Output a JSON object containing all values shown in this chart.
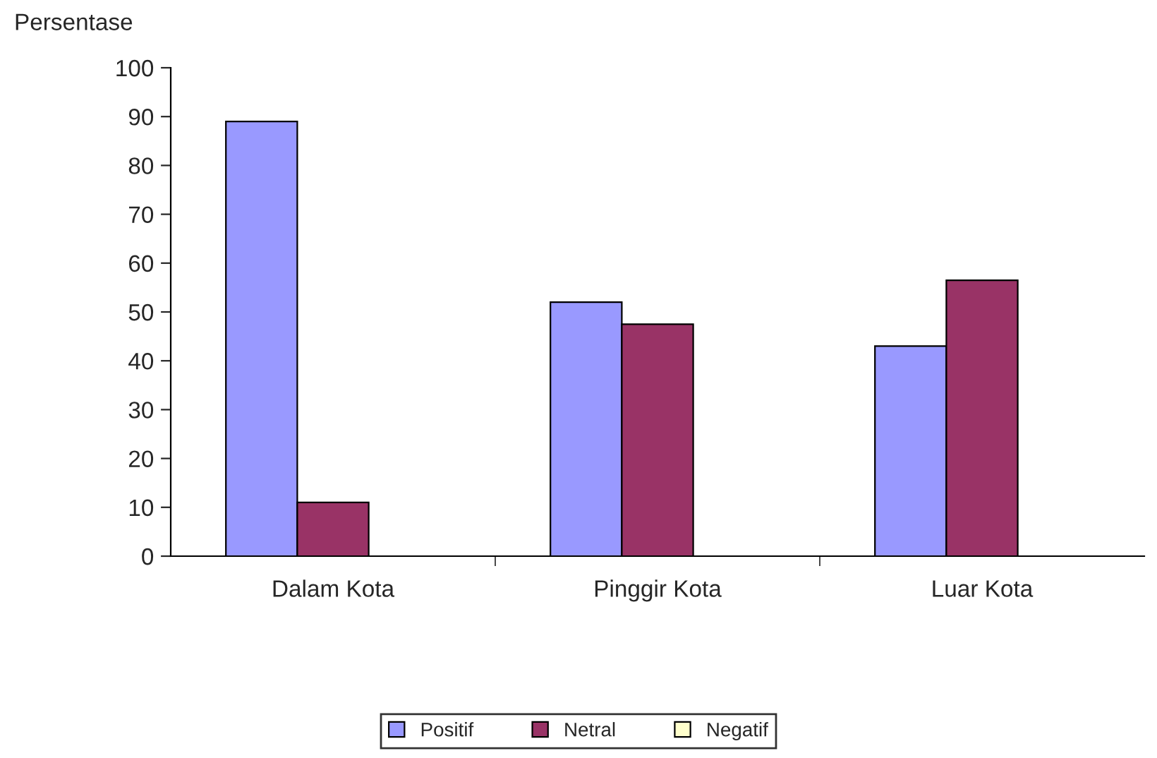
{
  "chart_data": {
    "type": "bar",
    "ylabel": "Persentase",
    "categories": [
      "Dalam Kota",
      "Pinggir Kota",
      "Luar Kota"
    ],
    "series": [
      {
        "name": "Positif",
        "color": "#9999ff",
        "values": [
          89,
          52,
          43
        ]
      },
      {
        "name": "Netral",
        "color": "#993366",
        "values": [
          11,
          47.5,
          56.5
        ]
      },
      {
        "name": "Negatif",
        "color": "#ffffcc",
        "values": [
          null,
          null,
          null
        ]
      }
    ],
    "ylim": [
      0,
      100
    ],
    "yticks": [
      0,
      10,
      20,
      30,
      40,
      50,
      60,
      70,
      80,
      90,
      100
    ],
    "grid": false,
    "legend": "bottom"
  }
}
